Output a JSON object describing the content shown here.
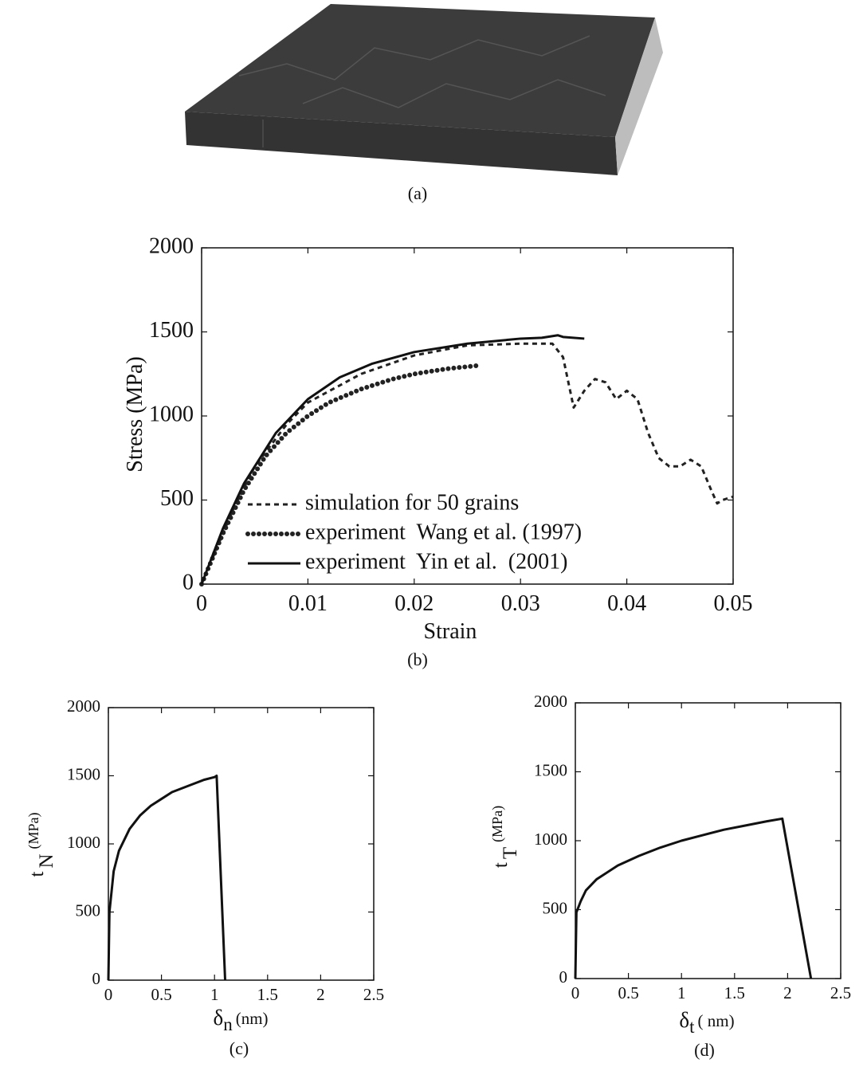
{
  "panel_a": {
    "caption": "(a)"
  },
  "chart_data": [
    {
      "type": "line",
      "caption": "(b)",
      "xlabel": "Strain",
      "ylabel": "Stress (MPa)",
      "xlim": [
        0,
        0.05
      ],
      "ylim": [
        0,
        2000
      ],
      "xticks": [
        0,
        0.01,
        0.02,
        0.03,
        0.04,
        0.05
      ],
      "yticks": [
        0,
        500,
        1000,
        1500,
        2000
      ],
      "legend": "lower left",
      "series": [
        {
          "name": "simulation for 50 grains",
          "style": "dotted",
          "color": "#222",
          "x": [
            0.001,
            0.003,
            0.005,
            0.008,
            0.01,
            0.015,
            0.02,
            0.025,
            0.03,
            0.033,
            0.034,
            0.035,
            0.036,
            0.037,
            0.038,
            0.039,
            0.04,
            0.041,
            0.042,
            0.043,
            0.044,
            0.045,
            0.046,
            0.047,
            0.048,
            0.0485,
            0.049,
            0.05
          ],
          "values": [
            150,
            450,
            700,
            950,
            1080,
            1250,
            1360,
            1420,
            1430,
            1430,
            1350,
            1050,
            1150,
            1220,
            1200,
            1100,
            1150,
            1100,
            900,
            750,
            700,
            700,
            740,
            700,
            550,
            480,
            500,
            520
          ]
        },
        {
          "name": "experiment  Wang et al. (1997)",
          "style": "dots",
          "color": "#222",
          "x": [
            0,
            0.002,
            0.004,
            0.006,
            0.008,
            0.01,
            0.012,
            0.015,
            0.018,
            0.02,
            0.023,
            0.026
          ],
          "values": [
            0,
            300,
            560,
            760,
            900,
            1000,
            1080,
            1160,
            1220,
            1250,
            1280,
            1300
          ]
        },
        {
          "name": "experiment  Yin et al.  (2001)",
          "style": "solid",
          "color": "#111",
          "x": [
            0,
            0.002,
            0.004,
            0.007,
            0.01,
            0.013,
            0.016,
            0.02,
            0.025,
            0.03,
            0.032,
            0.0335,
            0.034,
            0.036
          ],
          "values": [
            0,
            330,
            600,
            900,
            1100,
            1230,
            1310,
            1380,
            1430,
            1460,
            1465,
            1480,
            1470,
            1460
          ]
        }
      ]
    },
    {
      "type": "line",
      "caption": "(c)",
      "xlabel": "δ",
      "xlabel_sub": "n",
      "xlabel_unit": "(nm)",
      "ylabel": "t",
      "ylabel_sub": "N",
      "ylabel_unit": "(MPa)",
      "xlim": [
        0,
        2.5
      ],
      "ylim": [
        0,
        2000
      ],
      "xticks": [
        0,
        0.5,
        1,
        1.5,
        2,
        2.5
      ],
      "yticks": [
        0,
        500,
        1000,
        1500,
        2000
      ],
      "series": [
        {
          "style": "solid",
          "color": "#111",
          "x": [
            0,
            0.01,
            0.05,
            0.1,
            0.2,
            0.3,
            0.4,
            0.5,
            0.6,
            0.7,
            0.8,
            0.9,
            1.0,
            1.02,
            1.1
          ],
          "values": [
            0,
            500,
            800,
            950,
            1110,
            1210,
            1280,
            1330,
            1380,
            1410,
            1440,
            1470,
            1490,
            1500,
            0
          ]
        }
      ]
    },
    {
      "type": "line",
      "caption": "(d)",
      "xlabel": "δ",
      "xlabel_sub": "t",
      "xlabel_unit": "( nm)",
      "ylabel": "t",
      "ylabel_sub": "T",
      "ylabel_unit": "(MPa)",
      "xlim": [
        0,
        2.5
      ],
      "ylim": [
        0,
        2000
      ],
      "xticks": [
        0,
        0.5,
        1,
        1.5,
        2,
        2.5
      ],
      "yticks": [
        0,
        500,
        1000,
        1500,
        2000
      ],
      "series": [
        {
          "style": "solid",
          "color": "#111",
          "x": [
            0,
            0.01,
            0.05,
            0.1,
            0.2,
            0.4,
            0.6,
            0.8,
            1.0,
            1.2,
            1.4,
            1.6,
            1.8,
            1.95,
            2.22
          ],
          "values": [
            0,
            480,
            560,
            640,
            720,
            820,
            890,
            950,
            1000,
            1040,
            1080,
            1110,
            1140,
            1160,
            0
          ]
        }
      ]
    }
  ]
}
